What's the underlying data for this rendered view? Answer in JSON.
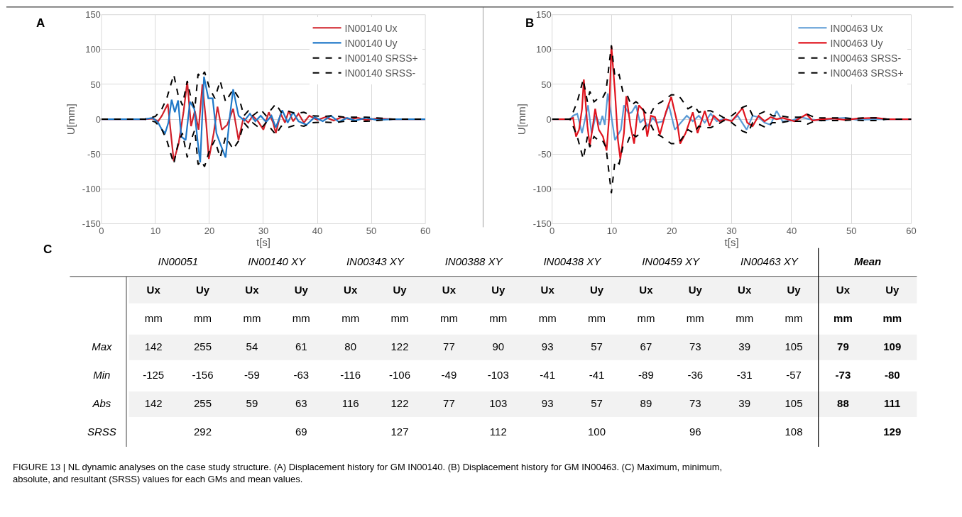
{
  "chart_data": [
    {
      "type": "line",
      "title": "A",
      "xlabel": "t[s]",
      "ylabel": "U[mm]",
      "xlim": [
        0,
        60
      ],
      "ylim": [
        -150,
        150
      ],
      "xticks": [
        0,
        10,
        20,
        30,
        40,
        50,
        60
      ],
      "yticks": [
        -150,
        -100,
        -50,
        0,
        50,
        100,
        150
      ],
      "grid": true,
      "legend": "top right",
      "series": [
        {
          "name": "IN00140 Ux",
          "color": "#d0202a",
          "line_style": "solid",
          "x": [
            0,
            8,
            9.5,
            10.5,
            11.2,
            12.3,
            13.4,
            14.3,
            15.2,
            15.9,
            16.6,
            17.3,
            18,
            18.7,
            19.4,
            19.9,
            20.8,
            21.5,
            22.3,
            23.3,
            24.4,
            25.4,
            26.3,
            27.2,
            28,
            29,
            30,
            31,
            31.8,
            32.3,
            33.2,
            34,
            34.7,
            35.5,
            36.5,
            37.5,
            38.5,
            40,
            41.5,
            43,
            44.5,
            46,
            47.5,
            49,
            51,
            54,
            60
          ],
          "values": [
            0,
            0,
            1,
            -3,
            5,
            22,
            -60,
            -35,
            10,
            54,
            -10,
            12,
            -15,
            50,
            -5,
            -57,
            -20,
            18,
            -15,
            -8,
            15,
            -30,
            2,
            -5,
            5,
            -3,
            -15,
            10,
            -5,
            -20,
            8,
            -5,
            12,
            -3,
            8,
            -5,
            5,
            -1,
            3,
            -2,
            3,
            0,
            2,
            -1,
            1,
            0,
            0
          ]
        },
        {
          "name": "IN00140 Uy",
          "color": "#1f78c8",
          "line_style": "solid",
          "x": [
            0,
            8,
            9.5,
            10.5,
            11.2,
            11.8,
            12.4,
            13,
            13.6,
            14.2,
            14.8,
            15.6,
            16.4,
            17.2,
            17.8,
            18.3,
            19,
            19.8,
            20.6,
            21.3,
            22,
            23,
            23.8,
            24.4,
            25.4,
            26.5,
            27.5,
            28.5,
            29.5,
            30.5,
            31.5,
            32.3,
            33.5,
            34.5,
            35.5,
            36.5,
            38,
            39.5,
            41,
            42.5,
            44,
            45.5,
            47,
            49,
            51,
            54,
            60
          ],
          "values": [
            0,
            0,
            2,
            -5,
            -15,
            -20,
            -5,
            28,
            10,
            27,
            -25,
            -30,
            25,
            15,
            -30,
            -62,
            61,
            30,
            30,
            -20,
            -35,
            -55,
            5,
            43,
            5,
            -2,
            8,
            -3,
            5,
            -4,
            5,
            -12,
            13,
            -5,
            10,
            -3,
            -8,
            3,
            -3,
            5,
            -4,
            2,
            -2,
            2,
            -1,
            0,
            0
          ]
        },
        {
          "name": "IN00140 SRSS+",
          "color": "#000000",
          "line_style": "dashed",
          "x": [
            0,
            8,
            10,
            11.2,
            12.1,
            13.4,
            14.2,
            15,
            15.9,
            16.6,
            17.3,
            17.9,
            18.5,
            19.1,
            20,
            21,
            22,
            23,
            24.4,
            25.5,
            26.4,
            27.2,
            28,
            29.5,
            30.5,
            32.3,
            33.3,
            34.5,
            36,
            37.5,
            39,
            41,
            43,
            45,
            47,
            49,
            51,
            54,
            60
          ],
          "values": [
            0,
            0,
            4,
            15,
            30,
            64,
            35,
            20,
            55,
            30,
            15,
            65,
            60,
            68,
            45,
            30,
            55,
            25,
            43,
            30,
            5,
            12,
            5,
            14,
            5,
            22,
            10,
            12,
            8,
            10,
            5,
            4,
            5,
            3,
            3,
            3,
            2,
            0,
            0
          ]
        },
        {
          "name": "IN00140 SRSS-",
          "color": "#000000",
          "line_style": "dashed",
          "x": [
            0,
            8,
            10,
            11.2,
            12.1,
            13.4,
            14.2,
            15,
            15.9,
            16.6,
            17.3,
            17.9,
            18.5,
            19.1,
            20,
            21,
            22,
            23,
            24.4,
            25.5,
            26.4,
            27.2,
            28,
            29.5,
            30.5,
            32.3,
            33.3,
            34.5,
            36,
            37.5,
            39,
            41,
            43,
            45,
            47,
            49,
            51,
            54,
            60
          ],
          "values": [
            0,
            0,
            -4,
            -15,
            -30,
            -64,
            -35,
            -20,
            -55,
            -30,
            -15,
            -65,
            -60,
            -68,
            -45,
            -30,
            -55,
            -25,
            -43,
            -30,
            -5,
            -12,
            -5,
            -14,
            -5,
            -22,
            -10,
            -12,
            -8,
            -10,
            -5,
            -4,
            -5,
            -3,
            -3,
            -3,
            -2,
            0,
            0
          ]
        }
      ]
    },
    {
      "type": "line",
      "title": "B",
      "xlabel": "t[s]",
      "ylabel": "U[mm]",
      "xlim": [
        0,
        60
      ],
      "ylim": [
        -150,
        150
      ],
      "xticks": [
        0,
        10,
        20,
        30,
        40,
        50,
        60
      ],
      "yticks": [
        -150,
        -100,
        -50,
        0,
        50,
        100,
        150
      ],
      "grid": true,
      "legend": "top right",
      "series": [
        {
          "name": "IN00463 Ux",
          "color": "#5b9bd5",
          "line_style": "solid",
          "x": [
            0,
            3,
            3.5,
            4.2,
            5,
            6,
            6.6,
            7.3,
            8,
            8.4,
            8.8,
            9.3,
            9.8,
            10.5,
            11.5,
            12,
            12.8,
            13.3,
            14,
            14.7,
            15.3,
            16,
            16.8,
            17.5,
            18.5,
            19.5,
            20.5,
            21.5,
            22.5,
            23.5,
            24.5,
            25.5,
            26.5,
            27.5,
            28.5,
            30,
            31,
            32.5,
            33.5,
            34.5,
            35.5,
            36.5,
            37.5,
            38.5,
            40,
            41.5,
            43,
            45,
            47,
            49,
            51,
            54,
            60
          ],
          "values": [
            0,
            0,
            5,
            8,
            -20,
            20,
            -20,
            5,
            -8,
            5,
            -8,
            37,
            10,
            -30,
            -15,
            20,
            8,
            10,
            20,
            -5,
            0,
            -10,
            2,
            -5,
            -3,
            20,
            -15,
            -5,
            5,
            -3,
            5,
            -5,
            8,
            -3,
            0,
            -2,
            5,
            -15,
            5,
            3,
            -5,
            -8,
            12,
            -3,
            -2,
            3,
            0,
            -2,
            1,
            2,
            -1,
            0,
            0
          ]
        },
        {
          "name": "IN00463 Uy",
          "color": "#e0141e",
          "line_style": "solid",
          "x": [
            0,
            3,
            3.5,
            4,
            4.5,
            5,
            5.3,
            5.9,
            6.3,
            6.8,
            7.2,
            7.8,
            8.5,
            9.1,
            9.5,
            9.9,
            10.5,
            11,
            11.4,
            12,
            12.4,
            13.1,
            13.7,
            14.2,
            14.5,
            15.3,
            15.9,
            16.5,
            17.2,
            18,
            19,
            19.9,
            20.9,
            21.4,
            22.3,
            23.5,
            24.3,
            25.5,
            26.3,
            27,
            28,
            29,
            30,
            31.8,
            32.6,
            33.5,
            34.5,
            35.5,
            36.5,
            37.5,
            38.5,
            40.5,
            42.5,
            43.5,
            45,
            47,
            49,
            51,
            54,
            56,
            60
          ],
          "values": [
            0,
            0,
            2,
            -25,
            -15,
            15,
            57,
            -10,
            -38,
            -10,
            15,
            -15,
            -25,
            -45,
            0,
            105,
            40,
            -30,
            -57,
            -20,
            33,
            -10,
            -35,
            5,
            20,
            12,
            -25,
            5,
            3,
            -22,
            10,
            32,
            -5,
            -35,
            -20,
            10,
            -20,
            12,
            -10,
            5,
            -3,
            0,
            -3,
            16,
            -5,
            -10,
            5,
            -3,
            3,
            0,
            2,
            -3,
            7,
            -2,
            0,
            1,
            -1,
            1,
            2,
            0,
            0
          ]
        },
        {
          "name": "IN00463 SRSS-",
          "color": "#000000",
          "line_style": "dashed",
          "x": [
            0,
            3,
            3.5,
            4.2,
            5.2,
            5.9,
            6.3,
            7,
            7.7,
            8.4,
            9,
            9.9,
            10.5,
            11.2,
            11.8,
            12.4,
            13.2,
            14,
            14.8,
            15.5,
            16.3,
            17.2,
            18.3,
            19.9,
            20.9,
            21.5,
            22.7,
            23.7,
            24.5,
            25.5,
            26.5,
            27.5,
            28.7,
            30,
            31.8,
            32.7,
            33.5,
            34.5,
            35.7,
            36.8,
            38,
            39.5,
            41.5,
            42.7,
            44,
            46,
            48,
            50,
            52,
            54,
            56,
            60
          ],
          "values": [
            0,
            0,
            -10,
            -25,
            -57,
            -25,
            -40,
            -25,
            -30,
            -30,
            -40,
            -106,
            -60,
            -64,
            -40,
            -38,
            -20,
            -25,
            -20,
            -10,
            -5,
            -20,
            -25,
            -35,
            -35,
            -30,
            -15,
            -20,
            -10,
            -12,
            -12,
            -8,
            -2,
            -5,
            -17,
            -20,
            -5,
            -7,
            -12,
            -5,
            -5,
            -3,
            -3,
            -7,
            -2,
            -2,
            -2,
            -1,
            -2,
            -2,
            0,
            0
          ]
        },
        {
          "name": "IN00463 SRSS+",
          "color": "#000000",
          "line_style": "dashed",
          "x": [
            0,
            3,
            3.5,
            4.2,
            5.2,
            5.9,
            6.3,
            7,
            7.7,
            8.4,
            9,
            9.9,
            10.5,
            11.2,
            11.8,
            12.4,
            13.2,
            14,
            14.8,
            15.5,
            16.3,
            17.2,
            18.3,
            19.9,
            20.9,
            21.5,
            22.7,
            23.7,
            24.5,
            25.5,
            26.5,
            27.5,
            28.7,
            30,
            31.8,
            32.7,
            33.5,
            34.5,
            35.7,
            36.8,
            38,
            39.5,
            41.5,
            42.7,
            44,
            46,
            48,
            50,
            52,
            54,
            56,
            60
          ],
          "values": [
            0,
            0,
            10,
            25,
            57,
            25,
            40,
            25,
            30,
            30,
            40,
            106,
            60,
            64,
            40,
            38,
            20,
            25,
            20,
            10,
            5,
            20,
            25,
            35,
            35,
            30,
            15,
            20,
            10,
            12,
            12,
            8,
            2,
            5,
            17,
            20,
            5,
            7,
            12,
            5,
            5,
            3,
            3,
            7,
            2,
            2,
            2,
            1,
            2,
            2,
            0,
            0
          ]
        }
      ]
    },
    {
      "type": "heatmap",
      "title": "C",
      "categories": [
        "Ux",
        "Uy",
        "Ux",
        "Uy",
        "Ux",
        "Uy",
        "Ux",
        "Uy",
        "Ux",
        "Uy",
        "Ux",
        "Uy",
        "Ux",
        "Uy",
        "Ux",
        "Uy"
      ],
      "y_categories": [
        "Max",
        "Min",
        "Abs",
        "SRSS"
      ],
      "data_labels": true,
      "cells": [
        [
          142,
          255,
          54,
          61,
          80,
          122,
          77,
          90,
          93,
          57,
          67,
          73,
          39,
          105,
          79,
          109
        ],
        [
          -125,
          -156,
          -59,
          -63,
          -116,
          -106,
          -49,
          -103,
          -41,
          -41,
          -89,
          -36,
          -31,
          -57,
          -73,
          -80
        ],
        [
          142,
          255,
          59,
          63,
          116,
          122,
          77,
          103,
          93,
          57,
          89,
          73,
          39,
          105,
          88,
          111
        ],
        [
          null,
          292,
          null,
          69,
          null,
          127,
          null,
          112,
          null,
          100,
          null,
          96,
          null,
          108,
          null,
          129
        ]
      ],
      "annotations": [
        "IN00051",
        "IN00140 XY",
        "IN00343 XY",
        "IN00388 XY",
        "IN00438 XY",
        "IN00459 XY",
        "IN00463 XY",
        "Mean",
        "mm",
        "mm",
        "mm",
        "mm",
        "mm",
        "mm",
        "mm",
        "mm",
        "mm",
        "mm",
        "mm",
        "mm",
        "mm",
        "mm",
        "mm",
        "mm",
        "FIGURE 13 | NL dynamic analyses on the case study structure. (A) Displacement history for GM IN00140. (B) Displacement history for GM IN00463. (C) Maximum, minimum, absolute, and resultant (SRSS) values for each GMs and mean values."
      ]
    }
  ]
}
